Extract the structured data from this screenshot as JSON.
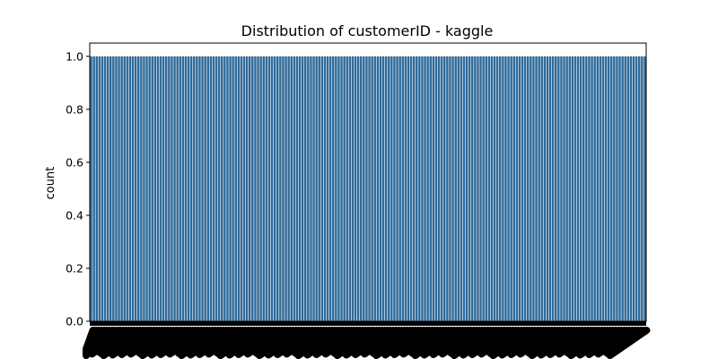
{
  "chart_data": {
    "type": "bar",
    "title": "Distribution of customerID - kaggle",
    "xlabel": "",
    "ylabel": "count",
    "ylim": [
      0,
      1.05
    ],
    "yticks": [
      "0.0",
      "0.2",
      "0.4",
      "0.6",
      "0.8",
      "1.0"
    ],
    "category_count": 200,
    "value_per_category": 1,
    "categories_note": "x tick labels are densely overlapping and illegible",
    "bar_color": "#2f6a99"
  }
}
